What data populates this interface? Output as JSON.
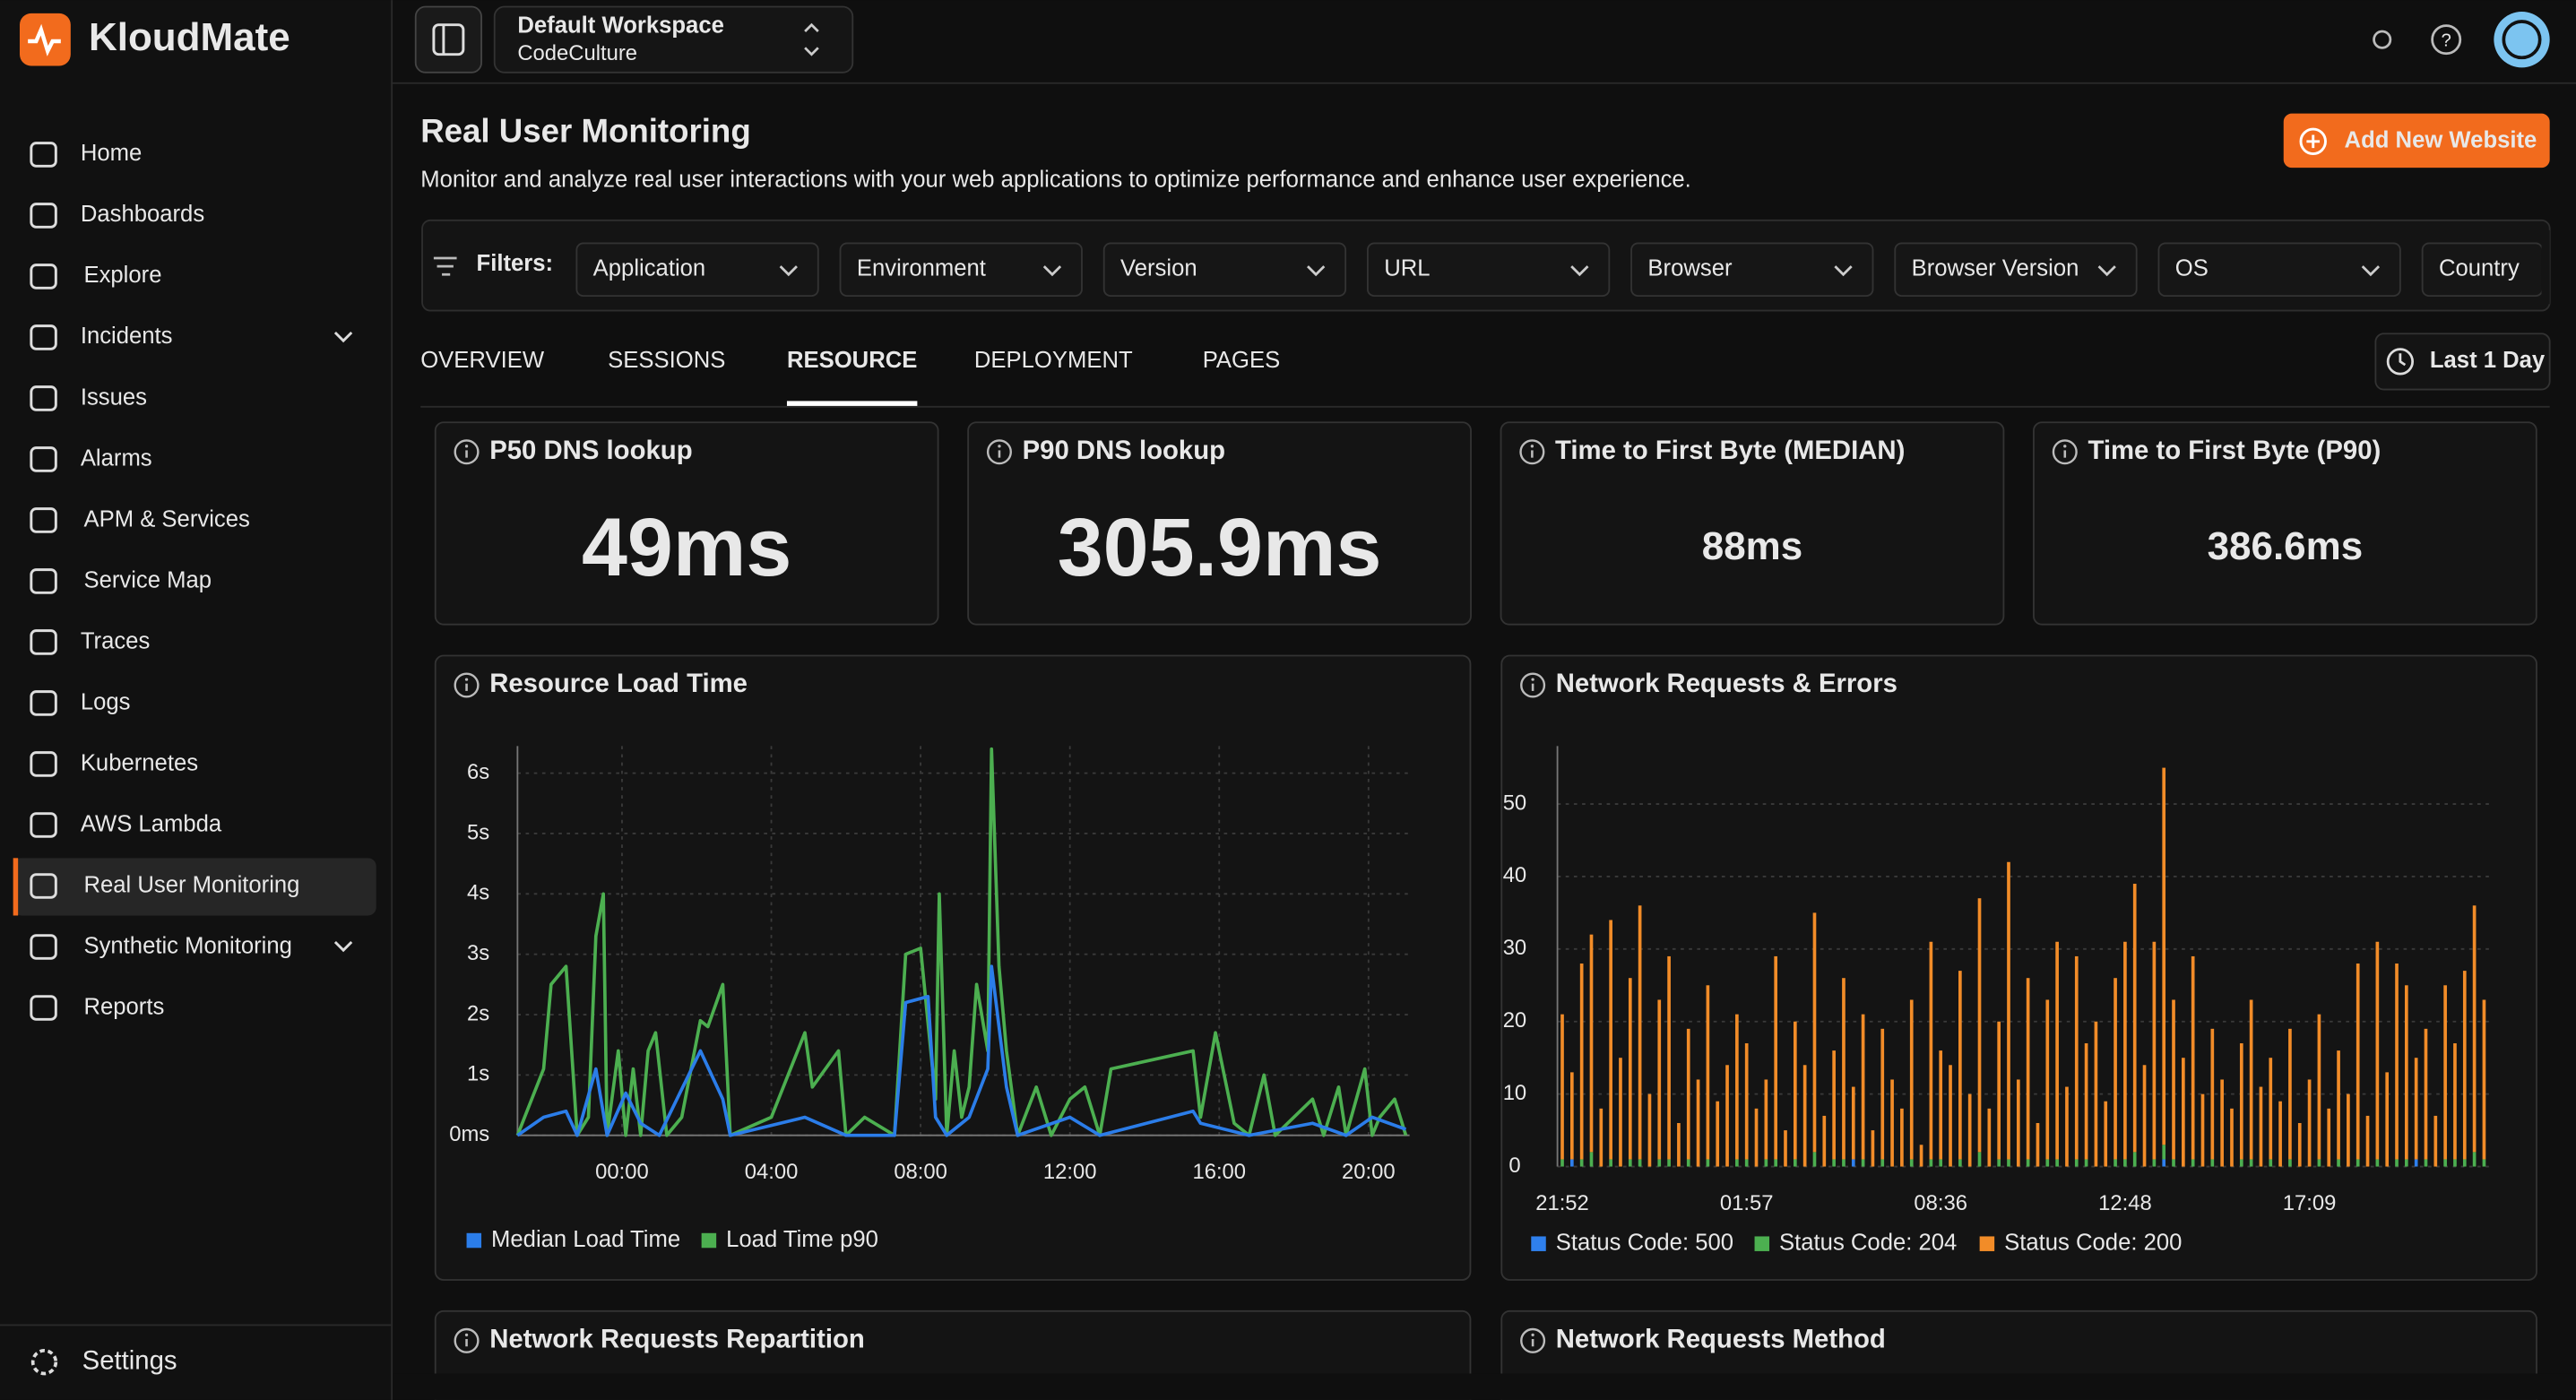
{
  "sidebar": {
    "brand": "KloudMate",
    "items": [
      "Home",
      "Dashboards",
      "Explore",
      "Incidents",
      "Issues",
      "Alarms",
      "APM & Services",
      "Service Map",
      "Traces",
      "Logs",
      "Kubernetes",
      "AWS Lambda",
      "Real User Monitoring",
      "Synthetic Monitoring",
      "Reports"
    ],
    "settings": "Settings"
  },
  "topbar": {
    "workspace": "Default Workspace",
    "org": "CodeCulture"
  },
  "header": {
    "title": "Real User Monitoring",
    "subtitle": "Monitor and analyze real user interactions with your web applications to optimize performance and enhance user experience.",
    "button": "Add New Website"
  },
  "filters": {
    "label": "Filters:",
    "items": [
      "Application",
      "Environment",
      "Version",
      "URL",
      "Browser",
      "Browser Version",
      "OS",
      "Country"
    ]
  },
  "tabs": {
    "items": [
      "OVERVIEW",
      "SESSIONS",
      "RESOURCE",
      "DEPLOYMENT",
      "PAGES"
    ],
    "range": "Last 1 Day"
  },
  "stats": [
    {
      "label": "P50 DNS lookup",
      "value": "49ms"
    },
    {
      "label": "P90 DNS lookup",
      "value": "305.9ms"
    },
    {
      "label": "Time to First Byte (MEDIAN)",
      "value": "88ms"
    },
    {
      "label": "Time to First Byte (P90)",
      "value": "386.6ms"
    }
  ],
  "chart_data": [
    {
      "type": "line",
      "title": "Resource Load Time",
      "xlim": [
        -2.8,
        21.1
      ],
      "xticks": [
        {
          "value": 0,
          "label": "00:00"
        },
        {
          "value": 4,
          "label": "04:00"
        },
        {
          "value": 8,
          "label": "08:00"
        },
        {
          "value": 12,
          "label": "12:00"
        },
        {
          "value": 16,
          "label": "16:00"
        },
        {
          "value": 20,
          "label": "20:00"
        }
      ],
      "ylim": [
        0,
        6.45
      ],
      "yticks": [
        {
          "value": 0,
          "label": "0ms"
        },
        {
          "value": 1,
          "label": "1s"
        },
        {
          "value": 2,
          "label": "2s"
        },
        {
          "value": 3,
          "label": "3s"
        },
        {
          "value": 4,
          "label": "4s"
        },
        {
          "value": 5,
          "label": "5s"
        },
        {
          "value": 6,
          "label": "6s"
        }
      ],
      "grid": true,
      "legend": "bottom",
      "series": [
        {
          "name": "Median Load Time",
          "color": "#2b7de9",
          "x": [
            -2.8,
            -2.1,
            -1.5,
            -1.2,
            -0.7,
            -0.4,
            0.1,
            0.5,
            1.0,
            2.1,
            2.7,
            2.9,
            4.9,
            6.0,
            7.3,
            7.6,
            8.2,
            8.4,
            8.7,
            9.3,
            9.8,
            9.9,
            10.3,
            10.6,
            12.0,
            12.8,
            15.3,
            15.5,
            16.8,
            18.5,
            19.4,
            20.1,
            21.0
          ],
          "values": [
            0.0,
            0.3,
            0.4,
            0.0,
            1.1,
            0.0,
            0.7,
            0.2,
            0.0,
            1.4,
            0.6,
            0.0,
            0.3,
            0.0,
            0.0,
            2.2,
            2.3,
            0.3,
            0.0,
            0.3,
            1.1,
            2.8,
            0.8,
            0.0,
            0.3,
            0.0,
            0.4,
            0.2,
            0.0,
            0.2,
            0.0,
            0.3,
            0.1
          ]
        },
        {
          "name": "Load Time p90",
          "color": "#4caf50",
          "x": [
            -2.8,
            -2.1,
            -1.9,
            -1.5,
            -1.2,
            -0.9,
            -0.7,
            -0.5,
            -0.4,
            -0.1,
            0.1,
            0.3,
            0.5,
            0.7,
            0.9,
            1.2,
            1.6,
            2.1,
            2.3,
            2.7,
            2.9,
            4.0,
            4.9,
            5.1,
            5.8,
            6.0,
            6.5,
            7.3,
            7.6,
            8.0,
            8.4,
            8.5,
            8.7,
            8.9,
            9.1,
            9.3,
            9.5,
            9.8,
            9.9,
            10.1,
            10.3,
            10.6,
            11.1,
            11.5,
            12.0,
            12.4,
            12.8,
            13.1,
            15.3,
            15.5,
            15.9,
            16.1,
            16.4,
            16.8,
            17.2,
            17.5,
            18.5,
            18.8,
            19.2,
            19.4,
            19.9,
            20.1,
            20.3,
            20.7,
            21.0
          ],
          "values": [
            0.0,
            1.1,
            2.5,
            2.8,
            0.0,
            0.3,
            3.3,
            4.0,
            0.0,
            1.4,
            0.0,
            1.1,
            0.0,
            1.4,
            1.7,
            0.0,
            0.3,
            1.9,
            1.8,
            2.5,
            0.0,
            0.3,
            1.7,
            0.8,
            1.4,
            0.0,
            0.3,
            0.0,
            3.0,
            3.1,
            0.6,
            4.0,
            0.0,
            1.4,
            0.3,
            0.8,
            2.5,
            1.4,
            6.4,
            2.8,
            1.4,
            0.0,
            0.8,
            0.0,
            0.6,
            0.8,
            0.0,
            1.1,
            1.4,
            0.3,
            1.7,
            1.1,
            0.2,
            0.0,
            1.0,
            0.0,
            0.6,
            0.0,
            0.8,
            0.0,
            1.1,
            0.0,
            0.3,
            0.6,
            0.0
          ]
        }
      ]
    },
    {
      "type": "bar",
      "stacked": true,
      "title": "Network Requests & Errors",
      "categories": [
        "21:52",
        null,
        null,
        null,
        null,
        null,
        null,
        null,
        null,
        null,
        null,
        null,
        null,
        null,
        null,
        null,
        null,
        null,
        null,
        "01:57",
        null,
        null,
        null,
        null,
        null,
        null,
        null,
        null,
        null,
        null,
        null,
        null,
        null,
        null,
        null,
        null,
        null,
        null,
        null,
        "08:36",
        null,
        null,
        null,
        null,
        null,
        null,
        null,
        null,
        null,
        null,
        null,
        null,
        null,
        null,
        null,
        null,
        null,
        null,
        "12:48",
        null,
        null,
        null,
        null,
        null,
        null,
        null,
        null,
        null,
        null,
        null,
        null,
        null,
        null,
        null,
        null,
        null,
        null,
        "17:09",
        null,
        null,
        null,
        null,
        null,
        null,
        null,
        null,
        null,
        null,
        null,
        null,
        null,
        null,
        null,
        null,
        null,
        null
      ],
      "ylim": [
        0,
        58
      ],
      "yticks": [
        0,
        10,
        20,
        30,
        40,
        50
      ],
      "grid": true,
      "legend": "bottom",
      "series": [
        {
          "name": "Status Code: 500",
          "color": "#2f80ed",
          "values": [
            0,
            1,
            0,
            0,
            0,
            0,
            0,
            0,
            0,
            0,
            0,
            0,
            0,
            0,
            0,
            0,
            0,
            0,
            0,
            0,
            0,
            0,
            0,
            0,
            0,
            0,
            0,
            0,
            0,
            0,
            1,
            0,
            0,
            0,
            0,
            0,
            0,
            0,
            0,
            0,
            0,
            0,
            0,
            0,
            0,
            0,
            0,
            0,
            0,
            0,
            0,
            0,
            0,
            0,
            0,
            0,
            0,
            0,
            0,
            0,
            0,
            0,
            1,
            0,
            0,
            0,
            0,
            0,
            0,
            0,
            0,
            0,
            0,
            0,
            0,
            0,
            0,
            0,
            0,
            0,
            0,
            0,
            0,
            0,
            0,
            0,
            0,
            0,
            1,
            0,
            0,
            0,
            0,
            0,
            0,
            0
          ]
        },
        {
          "name": "Status Code: 204",
          "color": "#4caf50",
          "values": [
            1,
            0,
            1,
            2,
            0,
            1,
            0,
            1,
            1,
            0,
            1,
            1,
            0,
            1,
            0,
            1,
            0,
            0,
            1,
            1,
            0,
            1,
            1,
            0,
            1,
            0,
            2,
            0,
            1,
            1,
            0,
            1,
            0,
            1,
            0,
            0,
            1,
            0,
            1,
            1,
            0,
            1,
            0,
            2,
            0,
            1,
            1,
            0,
            1,
            0,
            1,
            1,
            0,
            1,
            1,
            0,
            0,
            1,
            1,
            2,
            0,
            1,
            2,
            1,
            0,
            1,
            0,
            1,
            0,
            0,
            1,
            1,
            0,
            1,
            0,
            1,
            0,
            0,
            1,
            0,
            1,
            0,
            1,
            0,
            1,
            0,
            1,
            1,
            0,
            1,
            0,
            1,
            1,
            1,
            2,
            1
          ]
        },
        {
          "name": "Status Code: 200",
          "color": "#f28c28",
          "values": [
            20,
            12,
            27,
            30,
            8,
            33,
            15,
            25,
            35,
            10,
            22,
            28,
            6,
            18,
            12,
            24,
            9,
            14,
            20,
            16,
            8,
            11,
            28,
            5,
            19,
            14,
            33,
            7,
            15,
            25,
            10,
            20,
            5,
            18,
            12,
            8,
            22,
            3,
            30,
            15,
            14,
            26,
            10,
            35,
            8,
            19,
            41,
            12,
            25,
            6,
            22,
            30,
            11,
            28,
            16,
            20,
            9,
            25,
            30,
            37,
            14,
            30,
            52,
            22,
            15,
            28,
            10,
            18,
            12,
            8,
            16,
            22,
            11,
            14,
            9,
            18,
            6,
            12,
            20,
            8,
            15,
            10,
            27,
            7,
            30,
            13,
            27,
            24,
            14,
            18,
            7,
            24,
            16,
            26,
            34,
            22
          ]
        }
      ]
    }
  ],
  "lower_panels": [
    "Network Requests Repartition",
    "Network Requests Method"
  ]
}
